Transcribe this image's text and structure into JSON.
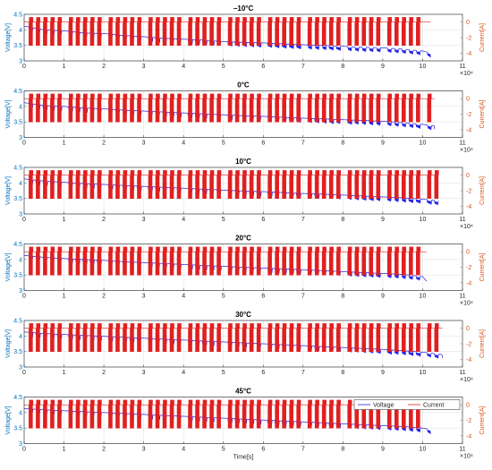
{
  "colors": {
    "voltage": "#1f1fe6",
    "current": "#e02020",
    "left_axis": "#0072bd",
    "right_axis": "#d95319",
    "grid": "#e3e3e3",
    "frame": "#262626"
  },
  "legend": {
    "voltage_label": "Voltage",
    "current_label": "Current"
  },
  "x_axis_label": "Time[s]",
  "exponent_label": "×10⁴",
  "chart_data": [
    {
      "type": "line",
      "title": "−10°C",
      "xlabel": "",
      "ylabel": "Voltage[V]",
      "y2label": "Current[A]",
      "xlim": [
        0,
        11
      ],
      "ylim": [
        3,
        4.5
      ],
      "y2lim": [
        -5,
        1
      ],
      "xticks": [
        "0",
        "1",
        "2",
        "3",
        "4",
        "5",
        "6",
        "7",
        "8",
        "9",
        "10",
        "11"
      ],
      "yticks": [
        "3",
        "3.5",
        "4",
        "4.5"
      ],
      "y2ticks": [
        "-4",
        "-2",
        "0"
      ],
      "grid": true,
      "legend": "none",
      "series": [
        {
          "name": "Voltage",
          "axis": "left",
          "x": [
            0,
            0.5,
            1,
            1.5,
            2,
            2.5,
            3,
            3.5,
            4,
            4.5,
            5,
            5.5,
            6,
            6.5,
            7,
            7.5,
            8,
            8.5,
            9,
            9.5,
            10,
            10.2
          ],
          "y": [
            4.12,
            4.0,
            3.97,
            3.9,
            3.88,
            3.82,
            3.78,
            3.73,
            3.7,
            3.67,
            3.62,
            3.6,
            3.58,
            3.55,
            3.52,
            3.5,
            3.47,
            3.44,
            3.42,
            3.38,
            3.32,
            3.25
          ]
        },
        {
          "name": "Current",
          "axis": "right",
          "baseline": 0,
          "pulse_low": -3,
          "pulse_high": 0.6,
          "end": 10.2
        }
      ]
    },
    {
      "type": "line",
      "title": "0°C",
      "xlabel": "",
      "ylabel": "Voltage[V]",
      "y2label": "Current[A]",
      "xlim": [
        0,
        11
      ],
      "ylim": [
        3,
        4.5
      ],
      "y2lim": [
        -5,
        1
      ],
      "xticks": [
        "0",
        "1",
        "2",
        "3",
        "4",
        "5",
        "6",
        "7",
        "8",
        "9",
        "10",
        "11"
      ],
      "yticks": [
        "3",
        "3.5",
        "4",
        "4.5"
      ],
      "y2ticks": [
        "-4",
        "-2",
        "0"
      ],
      "grid": true,
      "legend": "none",
      "series": [
        {
          "name": "Voltage",
          "axis": "left",
          "x": [
            0,
            0.5,
            1,
            1.5,
            2,
            2.5,
            3,
            3.5,
            4,
            4.5,
            5,
            5.5,
            6,
            6.5,
            7,
            7.5,
            8,
            8.5,
            9,
            9.5,
            10,
            10.3
          ],
          "y": [
            4.12,
            4.03,
            4.0,
            3.95,
            3.92,
            3.88,
            3.85,
            3.82,
            3.79,
            3.76,
            3.73,
            3.7,
            3.68,
            3.65,
            3.62,
            3.6,
            3.57,
            3.55,
            3.52,
            3.48,
            3.42,
            3.37
          ]
        },
        {
          "name": "Current",
          "axis": "right",
          "baseline": 0,
          "pulse_low": -3,
          "pulse_high": 0.6,
          "end": 10.3
        }
      ]
    },
    {
      "type": "line",
      "title": "10°C",
      "xlabel": "",
      "ylabel": "Voltage[V]",
      "y2label": "Current[A]",
      "xlim": [
        0,
        11
      ],
      "ylim": [
        3,
        4.5
      ],
      "y2lim": [
        -5,
        1
      ],
      "xticks": [
        "0",
        "1",
        "2",
        "3",
        "4",
        "5",
        "6",
        "7",
        "8",
        "9",
        "10",
        "11"
      ],
      "yticks": [
        "3",
        "3.5",
        "4",
        "4.5"
      ],
      "y2ticks": [
        "-4",
        "-2",
        "0"
      ],
      "grid": true,
      "legend": "none",
      "series": [
        {
          "name": "Voltage",
          "axis": "left",
          "x": [
            0,
            0.5,
            1,
            1.5,
            2,
            2.5,
            3,
            3.5,
            4,
            4.5,
            5,
            5.5,
            6,
            6.5,
            7,
            7.5,
            8,
            8.5,
            9,
            9.5,
            10,
            10.4
          ],
          "y": [
            4.13,
            4.06,
            4.02,
            3.98,
            3.95,
            3.92,
            3.89,
            3.86,
            3.83,
            3.8,
            3.77,
            3.74,
            3.72,
            3.69,
            3.66,
            3.64,
            3.61,
            3.58,
            3.55,
            3.52,
            3.48,
            3.42
          ]
        },
        {
          "name": "Current",
          "axis": "right",
          "baseline": 0,
          "pulse_low": -3,
          "pulse_high": 0.6,
          "end": 10.4
        }
      ]
    },
    {
      "type": "line",
      "title": "20°C",
      "xlabel": "",
      "ylabel": "Voltage[V]",
      "y2label": "Current[A]",
      "xlim": [
        0,
        11
      ],
      "ylim": [
        3,
        4.5
      ],
      "y2lim": [
        -5,
        1
      ],
      "xticks": [
        "0",
        "1",
        "2",
        "3",
        "4",
        "5",
        "6",
        "7",
        "8",
        "9",
        "10",
        "11"
      ],
      "yticks": [
        "3",
        "3.5",
        "4",
        "4.5"
      ],
      "y2ticks": [
        "-4",
        "-2",
        "0"
      ],
      "grid": true,
      "legend": "none",
      "series": [
        {
          "name": "Voltage",
          "axis": "left",
          "x": [
            0,
            0.5,
            1,
            1.5,
            2,
            2.5,
            3,
            3.5,
            4,
            4.5,
            5,
            5.5,
            6,
            6.5,
            7,
            7.5,
            8,
            8.5,
            9,
            9.5,
            10,
            10.1
          ],
          "y": [
            4.13,
            4.07,
            4.03,
            4.0,
            3.97,
            3.93,
            3.9,
            3.87,
            3.84,
            3.81,
            3.78,
            3.75,
            3.72,
            3.7,
            3.67,
            3.64,
            3.61,
            3.58,
            3.55,
            3.52,
            3.45,
            3.3
          ]
        },
        {
          "name": "Current",
          "axis": "right",
          "baseline": 0,
          "pulse_low": -3,
          "pulse_high": 0.6,
          "end": 10.1
        }
      ]
    },
    {
      "type": "line",
      "title": "30°C",
      "xlabel": "",
      "ylabel": "Voltage[V]",
      "y2label": "Current[A]",
      "xlim": [
        0,
        11
      ],
      "ylim": [
        3,
        4.5
      ],
      "y2lim": [
        -5,
        1
      ],
      "xticks": [
        "0",
        "1",
        "2",
        "3",
        "4",
        "5",
        "6",
        "7",
        "8",
        "9",
        "10",
        "11"
      ],
      "yticks": [
        "3",
        "3.5",
        "4",
        "4.5"
      ],
      "y2ticks": [
        "-4",
        "-2",
        "0"
      ],
      "grid": true,
      "legend": "none",
      "series": [
        {
          "name": "Voltage",
          "axis": "left",
          "x": [
            0,
            0.5,
            1,
            1.5,
            2,
            2.5,
            3,
            3.5,
            4,
            4.5,
            5,
            5.5,
            6,
            6.5,
            7,
            7.5,
            8,
            8.5,
            9,
            9.5,
            10,
            10.5
          ],
          "y": [
            4.13,
            4.08,
            4.05,
            4.02,
            3.99,
            3.96,
            3.93,
            3.9,
            3.87,
            3.84,
            3.81,
            3.78,
            3.75,
            3.72,
            3.69,
            3.66,
            3.63,
            3.6,
            3.57,
            3.53,
            3.48,
            3.4
          ]
        },
        {
          "name": "Current",
          "axis": "right",
          "baseline": 0,
          "pulse_low": -3,
          "pulse_high": 0.6,
          "end": 10.5
        }
      ]
    },
    {
      "type": "line",
      "title": "45°C",
      "xlabel": "Time[s]",
      "ylabel": "Voltage[V]",
      "y2label": "Current[A]",
      "xlim": [
        0,
        11
      ],
      "ylim": [
        3,
        4.5
      ],
      "y2lim": [
        -5,
        1
      ],
      "xticks": [
        "0",
        "1",
        "2",
        "3",
        "4",
        "5",
        "6",
        "7",
        "8",
        "9",
        "10",
        "11"
      ],
      "yticks": [
        "3",
        "3.5",
        "4",
        "4.5"
      ],
      "y2ticks": [
        "-4",
        "-2",
        "0"
      ],
      "grid": true,
      "legend": "top-right",
      "series": [
        {
          "name": "Voltage",
          "axis": "left",
          "x": [
            0,
            0.5,
            1,
            1.5,
            2,
            2.5,
            3,
            3.5,
            4,
            4.5,
            5,
            5.5,
            6,
            6.5,
            7,
            7.5,
            8,
            8.5,
            9,
            9.5,
            10,
            10.2
          ],
          "y": [
            4.13,
            4.09,
            4.06,
            4.03,
            4.0,
            3.97,
            3.94,
            3.91,
            3.88,
            3.85,
            3.82,
            3.79,
            3.76,
            3.73,
            3.7,
            3.67,
            3.64,
            3.61,
            3.58,
            3.55,
            3.5,
            3.45
          ]
        },
        {
          "name": "Current",
          "axis": "right",
          "baseline": 0,
          "pulse_low": -3,
          "pulse_high": 0.6,
          "end": 10.2
        }
      ]
    }
  ]
}
